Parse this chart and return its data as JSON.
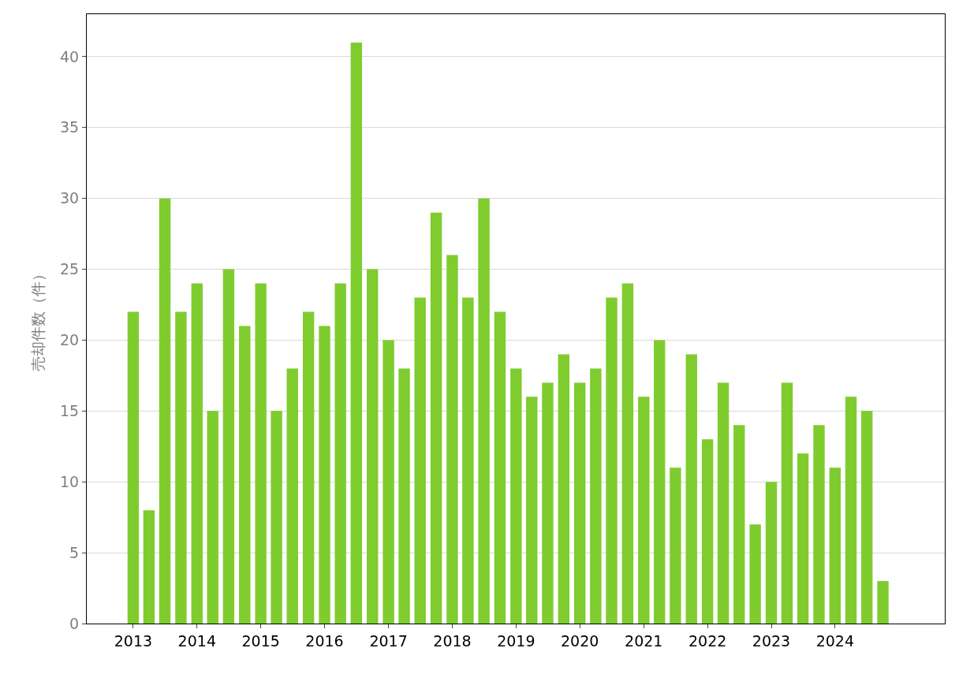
{
  "chart_data": {
    "type": "bar",
    "ylabel": "売却件数（件）",
    "color": "#7fcc2e",
    "x": [
      "2013-01",
      "2013-04",
      "2013-07",
      "2013-10",
      "2014-01",
      "2014-04",
      "2014-07",
      "2014-10",
      "2015-01",
      "2015-04",
      "2015-07",
      "2015-10",
      "2016-01",
      "2016-04",
      "2016-07",
      "2016-10",
      "2017-01",
      "2017-04",
      "2017-07",
      "2017-10",
      "2018-01",
      "2018-04",
      "2018-07",
      "2018-10",
      "2019-01",
      "2019-04",
      "2019-07",
      "2019-10",
      "2020-01",
      "2020-04",
      "2020-07",
      "2020-10",
      "2021-01",
      "2021-04",
      "2021-07",
      "2021-10",
      "2022-01",
      "2022-04",
      "2022-07",
      "2022-10",
      "2023-01",
      "2023-04",
      "2023-07",
      "2023-10",
      "2024-01",
      "2024-04",
      "2024-07",
      "2024-10"
    ],
    "values": [
      22,
      8,
      30,
      22,
      24,
      15,
      25,
      21,
      24,
      15,
      18,
      22,
      21,
      24,
      41,
      25,
      20,
      18,
      23,
      29,
      26,
      23,
      30,
      22,
      18,
      16,
      17,
      19,
      17,
      18,
      23,
      24,
      16,
      20,
      11,
      19,
      13,
      17,
      14,
      7,
      10,
      17,
      12,
      14,
      11,
      16,
      15,
      3
    ],
    "xlim": [
      "2012-04-10",
      "2025-09-20"
    ],
    "xticks": [
      {
        "value": "2013-01-01",
        "label": "2013"
      },
      {
        "value": "2014-01-01",
        "label": "2014"
      },
      {
        "value": "2015-01-01",
        "label": "2015"
      },
      {
        "value": "2016-01-01",
        "label": "2016"
      },
      {
        "value": "2017-01-01",
        "label": "2017"
      },
      {
        "value": "2018-01-01",
        "label": "2018"
      },
      {
        "value": "2019-01-01",
        "label": "2019"
      },
      {
        "value": "2020-01-01",
        "label": "2020"
      },
      {
        "value": "2021-01-01",
        "label": "2021"
      },
      {
        "value": "2022-01-01",
        "label": "2022"
      },
      {
        "value": "2023-01-01",
        "label": "2023"
      },
      {
        "value": "2024-01-01",
        "label": "2024"
      }
    ],
    "ylim": [
      0,
      43
    ],
    "yticks": [
      0,
      5,
      10,
      15,
      20,
      25,
      30,
      35,
      40
    ],
    "grid": "y"
  }
}
